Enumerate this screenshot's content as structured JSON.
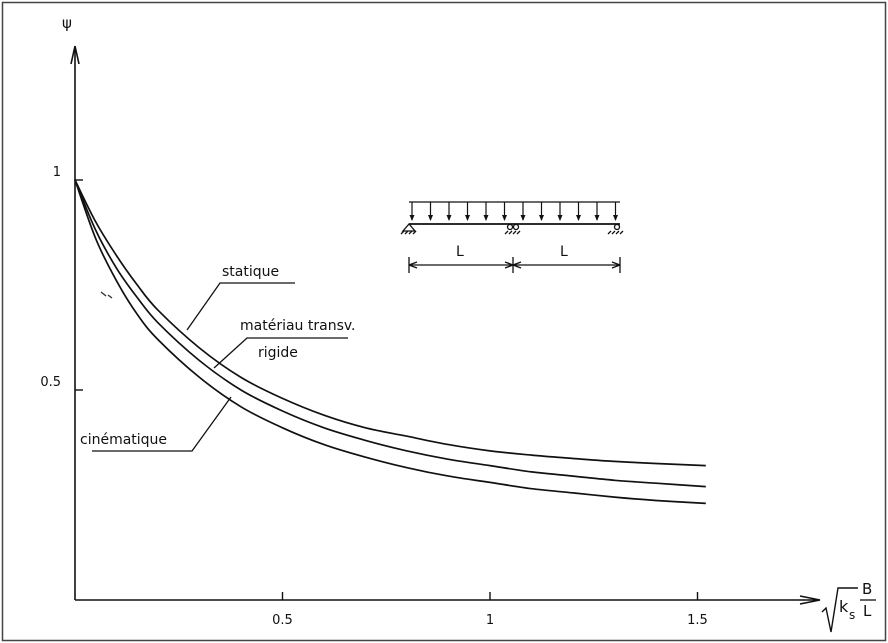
{
  "chart_data": {
    "type": "line",
    "title": "",
    "ylabel": "ψ",
    "xlabel": {
      "root_expr": "k",
      "root_sub": "s",
      "frac_num": "B",
      "frac_den": "L"
    },
    "xlim": [
      0,
      1.7
    ],
    "ylim": [
      0,
      1.2
    ],
    "xticks": [
      0.5,
      1,
      1.5
    ],
    "xtick_labels": [
      "0.5",
      "1",
      "1.5"
    ],
    "yticks": [
      0.5,
      1
    ],
    "ytick_labels": [
      "0.5",
      "1"
    ],
    "grid": false,
    "legend": "none",
    "series": [
      {
        "name": "statique",
        "points": [
          [
            0,
            1.0
          ],
          [
            0.05,
            0.9
          ],
          [
            0.1,
            0.82
          ],
          [
            0.15,
            0.75
          ],
          [
            0.2,
            0.69
          ],
          [
            0.3,
            0.6
          ],
          [
            0.4,
            0.53
          ],
          [
            0.5,
            0.48
          ],
          [
            0.6,
            0.44
          ],
          [
            0.7,
            0.41
          ],
          [
            0.8,
            0.39
          ],
          [
            0.9,
            0.37
          ],
          [
            1.0,
            0.355
          ],
          [
            1.1,
            0.345
          ],
          [
            1.2,
            0.337
          ],
          [
            1.3,
            0.33
          ],
          [
            1.4,
            0.325
          ],
          [
            1.52,
            0.32
          ]
        ]
      },
      {
        "name": "matériau transv. rigide",
        "points": [
          [
            0,
            1.0
          ],
          [
            0.05,
            0.88
          ],
          [
            0.1,
            0.79
          ],
          [
            0.15,
            0.72
          ],
          [
            0.2,
            0.66
          ],
          [
            0.3,
            0.57
          ],
          [
            0.4,
            0.5
          ],
          [
            0.5,
            0.45
          ],
          [
            0.6,
            0.41
          ],
          [
            0.7,
            0.38
          ],
          [
            0.8,
            0.355
          ],
          [
            0.9,
            0.335
          ],
          [
            1.0,
            0.32
          ],
          [
            1.1,
            0.305
          ],
          [
            1.2,
            0.295
          ],
          [
            1.3,
            0.285
          ],
          [
            1.4,
            0.278
          ],
          [
            1.52,
            0.27
          ]
        ]
      },
      {
        "name": "cinématique",
        "points": [
          [
            0,
            1.0
          ],
          [
            0.05,
            0.86
          ],
          [
            0.1,
            0.76
          ],
          [
            0.15,
            0.68
          ],
          [
            0.2,
            0.62
          ],
          [
            0.3,
            0.53
          ],
          [
            0.4,
            0.46
          ],
          [
            0.5,
            0.41
          ],
          [
            0.6,
            0.37
          ],
          [
            0.7,
            0.34
          ],
          [
            0.8,
            0.315
          ],
          [
            0.9,
            0.295
          ],
          [
            1.0,
            0.28
          ],
          [
            1.1,
            0.265
          ],
          [
            1.2,
            0.255
          ],
          [
            1.3,
            0.245
          ],
          [
            1.4,
            0.237
          ],
          [
            1.52,
            0.23
          ]
        ]
      }
    ],
    "annotations": {
      "statique": "statique",
      "materiau_line1": "matériau transv.",
      "materiau_line2": "rigide",
      "cinematique": "cinématique"
    },
    "inset": {
      "span_label_left": "L",
      "span_label_right": "L"
    }
  }
}
